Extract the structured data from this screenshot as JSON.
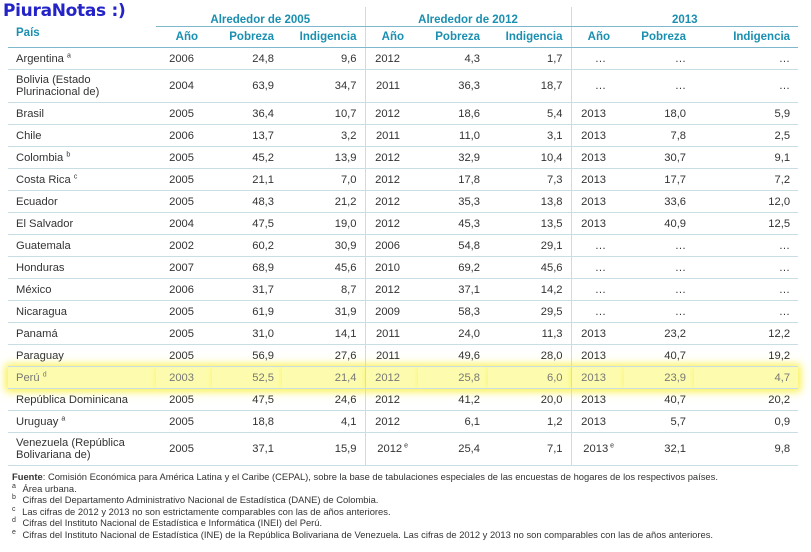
{
  "brand": "PiuraNotas :)",
  "table": {
    "country_header": "País",
    "groups": [
      "Alrededor de 2005",
      "Alrededor de 2012",
      "2013"
    ],
    "subheaders": [
      "Año",
      "Pobreza",
      "Indigencia"
    ],
    "rows": [
      {
        "country": "Argentina",
        "sup": "a",
        "tall": false,
        "hl": false,
        "cells": [
          "2006",
          "24,8",
          "9,6",
          "2012",
          "4,3",
          "1,7",
          "…",
          "…",
          "…"
        ]
      },
      {
        "country": "Bolivia (Estado Plurinacional de)",
        "sup": "",
        "tall": true,
        "hl": false,
        "cells": [
          "2004",
          "63,9",
          "34,7",
          "2011",
          "36,3",
          "18,7",
          "…",
          "…",
          "…"
        ]
      },
      {
        "country": "Brasil",
        "sup": "",
        "tall": false,
        "hl": false,
        "cells": [
          "2005",
          "36,4",
          "10,7",
          "2012",
          "18,6",
          "5,4",
          "2013",
          "18,0",
          "5,9"
        ]
      },
      {
        "country": "Chile",
        "sup": "",
        "tall": false,
        "hl": false,
        "cells": [
          "2006",
          "13,7",
          "3,2",
          "2011",
          "11,0",
          "3,1",
          "2013",
          "7,8",
          "2,5"
        ]
      },
      {
        "country": "Colombia",
        "sup": "b",
        "tall": false,
        "hl": false,
        "cells": [
          "2005",
          "45,2",
          "13,9",
          "2012",
          "32,9",
          "10,4",
          "2013",
          "30,7",
          "9,1"
        ]
      },
      {
        "country": "Costa Rica",
        "sup": "c",
        "tall": false,
        "hl": false,
        "cells": [
          "2005",
          "21,1",
          "7,0",
          "2012",
          "17,8",
          "7,3",
          "2013",
          "17,7",
          "7,2"
        ]
      },
      {
        "country": "Ecuador",
        "sup": "",
        "tall": false,
        "hl": false,
        "cells": [
          "2005",
          "48,3",
          "21,2",
          "2012",
          "35,3",
          "13,8",
          "2013",
          "33,6",
          "12,0"
        ]
      },
      {
        "country": "El Salvador",
        "sup": "",
        "tall": false,
        "hl": false,
        "cells": [
          "2004",
          "47,5",
          "19,0",
          "2012",
          "45,3",
          "13,5",
          "2013",
          "40,9",
          "12,5"
        ]
      },
      {
        "country": "Guatemala",
        "sup": "",
        "tall": false,
        "hl": false,
        "cells": [
          "2002",
          "60,2",
          "30,9",
          "2006",
          "54,8",
          "29,1",
          "…",
          "…",
          "…"
        ]
      },
      {
        "country": "Honduras",
        "sup": "",
        "tall": false,
        "hl": false,
        "cells": [
          "2007",
          "68,9",
          "45,6",
          "2010",
          "69,2",
          "45,6",
          "…",
          "…",
          "…"
        ]
      },
      {
        "country": "México",
        "sup": "",
        "tall": false,
        "hl": false,
        "cells": [
          "2006",
          "31,7",
          "8,7",
          "2012",
          "37,1",
          "14,2",
          "…",
          "…",
          "…"
        ]
      },
      {
        "country": "Nicaragua",
        "sup": "",
        "tall": false,
        "hl": false,
        "cells": [
          "2005",
          "61,9",
          "31,9",
          "2009",
          "58,3",
          "29,5",
          "…",
          "…",
          "…"
        ]
      },
      {
        "country": "Panamá",
        "sup": "",
        "tall": false,
        "hl": false,
        "cells": [
          "2005",
          "31,0",
          "14,1",
          "2011",
          "24,0",
          "11,3",
          "2013",
          "23,2",
          "12,2"
        ]
      },
      {
        "country": "Paraguay",
        "sup": "",
        "tall": false,
        "hl": false,
        "cells": [
          "2005",
          "56,9",
          "27,6",
          "2011",
          "49,6",
          "28,0",
          "2013",
          "40,7",
          "19,2"
        ]
      },
      {
        "country": "Perú",
        "sup": "d",
        "tall": false,
        "hl": true,
        "cells": [
          "2003",
          "52,5",
          "21,4",
          "2012",
          "25,8",
          "6,0",
          "2013",
          "23,9",
          "4,7"
        ]
      },
      {
        "country": "República Dominicana",
        "sup": "",
        "tall": false,
        "hl": false,
        "cells": [
          "2005",
          "47,5",
          "24,6",
          "2012",
          "41,2",
          "20,0",
          "2013",
          "40,7",
          "20,2"
        ]
      },
      {
        "country": "Uruguay",
        "sup": "a",
        "tall": false,
        "hl": false,
        "cells": [
          "2005",
          "18,8",
          "4,1",
          "2012",
          "6,1",
          "1,2",
          "2013",
          "5,7",
          "0,9"
        ]
      },
      {
        "country": "Venezuela (República Bolivariana de)",
        "sup": "",
        "tall": true,
        "hl": false,
        "cells": [
          "2005",
          "37,1",
          "15,9",
          "2012 e",
          "25,4",
          "7,1",
          "2013 e",
          "32,1",
          "9,8"
        ]
      }
    ]
  },
  "notes": {
    "source_label": "Fuente",
    "source_text": ": Comisión Económica para América Latina y el Caribe (CEPAL), sobre la base de tabulaciones especiales de las encuestas de hogares de los respectivos países.",
    "items": [
      {
        "mark": "a",
        "text": "Área urbana."
      },
      {
        "mark": "b",
        "text": "Cifras del Departamento Administrativo Nacional de Estadística (DANE) de Colombia."
      },
      {
        "mark": "c",
        "text": "Las cifras de 2012 y 2013 no son estrictamente comparables con las de años anteriores."
      },
      {
        "mark": "d",
        "text": "Cifras del Instituto Nacional de Estadística e Informática (INEI) del Perú."
      },
      {
        "mark": "e",
        "text": "Cifras del Instituto Nacional de Estadística (INE) de la República Bolivariana de Venezuela. Las cifras de 2012 y 2013 no son comparables con las de años anteriores."
      }
    ]
  }
}
